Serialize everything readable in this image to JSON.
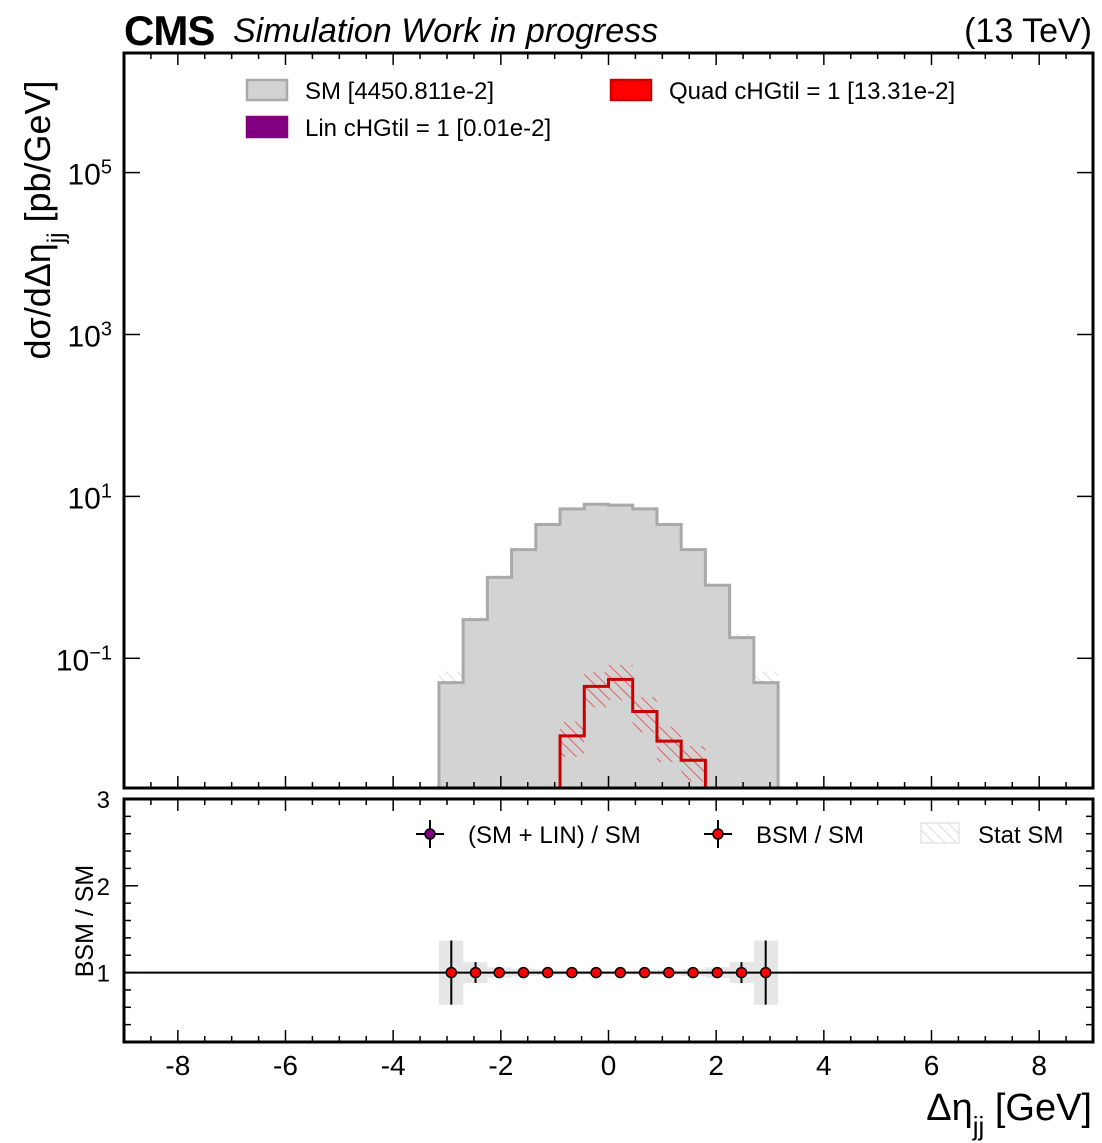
{
  "header": {
    "experiment": "CMS",
    "status": "Simulation Work in progress",
    "energy": "(13 TeV)"
  },
  "colors": {
    "sm_fill": "#d3d3d3",
    "sm_edge": "#a9a9a9",
    "lin": "#800080",
    "quad": "#ff0000",
    "quad_edge": "#cc0000",
    "stat_band": "#e0e0e0"
  },
  "chart_data": [
    {
      "type": "histogram",
      "panel": "main",
      "ylabel": "dσ/dΔη",
      "ylabel_sub": "jj",
      "ylabel_unit": " [pb/GeV]",
      "yscale": "log",
      "ylim": [
        0.0025,
        3000000
      ],
      "xlim": [
        -9,
        9
      ],
      "yticks": [
        {
          "value": 0.1,
          "base": "10",
          "exp": "−1"
        },
        {
          "value": 10,
          "base": "10",
          "exp": "1"
        },
        {
          "value": 1000,
          "base": "10",
          "exp": "3"
        },
        {
          "value": 100000,
          "base": "10",
          "exp": "5"
        }
      ],
      "legend": {
        "placement": "top",
        "entries": [
          {
            "label": "SM [4450.811e-2]",
            "color": "#d3d3d3",
            "edge": "#a9a9a9"
          },
          {
            "label": "Quad cHGtil = 1 [13.31e-2]",
            "color": "#ff0000",
            "edge": "#cc0000"
          },
          {
            "label": "Lin cHGtil = 1 [0.01e-2]",
            "color": "#800080",
            "edge": "#800080"
          }
        ]
      },
      "bin_edges": [
        -3.15,
        -2.7,
        -2.25,
        -1.8,
        -1.35,
        -0.9,
        -0.45,
        0.0,
        0.45,
        0.9,
        1.35,
        1.8,
        2.25,
        2.7,
        3.15
      ],
      "series": [
        {
          "name": "SM [4450.811e-2]",
          "values": [
            0.05,
            0.3,
            1.0,
            2.2,
            4.5,
            7.0,
            8.0,
            7.8,
            7.0,
            4.5,
            2.2,
            0.8,
            0.18,
            0.05
          ]
        },
        {
          "name": "Quad cHGtil = 1 [13.31e-2]",
          "values": [
            0,
            0,
            0,
            0,
            0,
            0.011,
            0.045,
            0.055,
            0.022,
            0.0095,
            0.0055,
            0,
            0,
            0
          ]
        },
        {
          "name": "Lin cHGtil = 1 [0.01e-2]",
          "values": [
            0,
            0,
            0,
            0,
            0,
            0,
            0,
            0,
            0,
            0,
            0,
            0,
            0,
            0
          ]
        }
      ]
    },
    {
      "type": "scatter",
      "panel": "ratio",
      "ylabel": "BSM / SM",
      "ylim": [
        0.2,
        3
      ],
      "yticks": [
        "1",
        "2",
        "3"
      ],
      "xlim": [
        -9,
        9
      ],
      "xticks": [
        "-8",
        "-6",
        "-4",
        "-2",
        "0",
        "2",
        "4",
        "6",
        "8"
      ],
      "xlabel": "Δη",
      "xlabel_sub": "jj",
      "xlabel_unit": " [GeV]",
      "legend": {
        "placement": "top-right",
        "entries": [
          {
            "label": "(SM + LIN) / SM",
            "marker": "#800080"
          },
          {
            "label": "BSM / SM",
            "marker": "#ff0000"
          },
          {
            "label": "Stat SM",
            "band": "#e0e0e0"
          }
        ]
      },
      "x": [
        -2.92,
        -2.47,
        -2.03,
        -1.58,
        -1.13,
        -0.68,
        -0.23,
        0.22,
        0.67,
        1.12,
        1.57,
        2.02,
        2.47,
        2.92
      ],
      "series": [
        {
          "name": "BSM / SM",
          "values": [
            1.0,
            1.0,
            1.0,
            1.0,
            1.0,
            1.0,
            1.0,
            1.0,
            1.0,
            1.0,
            1.0,
            1.0,
            1.0,
            1.0
          ],
          "errors": [
            0.37,
            0.12,
            0.06,
            0.04,
            0.03,
            0.025,
            0.02,
            0.02,
            0.025,
            0.03,
            0.04,
            0.06,
            0.12,
            0.37
          ]
        },
        {
          "name": "(SM + LIN) / SM",
          "values": [
            1.0,
            1.0,
            1.0,
            1.0,
            1.0,
            1.0,
            1.0,
            1.0,
            1.0,
            1.0,
            1.0,
            1.0,
            1.0,
            1.0
          ]
        }
      ],
      "stat_band": [
        0.37,
        0.12,
        0.06,
        0.04,
        0.03,
        0.025,
        0.02,
        0.02,
        0.025,
        0.03,
        0.04,
        0.06,
        0.12,
        0.37
      ]
    }
  ]
}
